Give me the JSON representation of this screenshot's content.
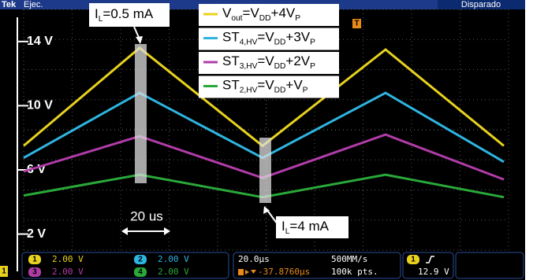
{
  "chart_data": {
    "type": "line",
    "x": [
      0,
      49,
      101,
      153,
      203
    ],
    "xlim": [
      0,
      205
    ],
    "ylim": [
      1,
      16
    ],
    "yticks": [
      {
        "value": 2,
        "label": "2 V"
      },
      {
        "value": 6,
        "label": "6 V"
      },
      {
        "value": 10,
        "label": "10 V"
      },
      {
        "value": 14,
        "label": "14 V"
      }
    ],
    "grid": true,
    "series": [
      {
        "name": [
          "V",
          "out",
          "=V",
          "DD",
          "+4V",
          "P"
        ],
        "color": "#e8d21f",
        "values": [
          7.5,
          13.6,
          7.5,
          13.5,
          7.5
        ]
      },
      {
        "name": [
          "ST",
          "4,HV",
          "=V",
          "DD",
          "+3V",
          "P"
        ],
        "color": "#2fb4e0",
        "values": [
          6.75,
          10.8,
          6.75,
          10.8,
          6.5
        ]
      },
      {
        "name": [
          "ST",
          "3,HV",
          "=V",
          "DD",
          "+2V",
          "P"
        ],
        "color": "#b03ca8",
        "values": [
          5.9,
          8.1,
          5.5,
          8.2,
          5.4
        ]
      },
      {
        "name": [
          "ST",
          "2,HV",
          "=V",
          "DD",
          "+V",
          "P"
        ],
        "color": "#2aa83a",
        "values": [
          4.4,
          5.7,
          4.3,
          5.7,
          4.3
        ]
      }
    ],
    "annotations": [
      [
        "I",
        "L",
        "=0.5 mA"
      ],
      [
        "I",
        "L",
        "=4 mA"
      ],
      "20 us"
    ]
  },
  "scope": {
    "brand": "Tek",
    "mode": "Ejec.",
    "status": "Disparado",
    "trigger_marker": "T",
    "ground_marker": "1",
    "channels": [
      {
        "id": "1",
        "scale": "2.00 V"
      },
      {
        "id": "2",
        "scale": "2.00 V"
      },
      {
        "id": "3",
        "scale": "2.00 V"
      },
      {
        "id": "4",
        "scale": "2.00 V"
      }
    ],
    "timebase": "20.0µs",
    "sample_rate": "500MM/s",
    "position": "-37.8760µs",
    "record": "100k pts.",
    "trigger_channel": "1",
    "trigger_level": "12.9 V"
  }
}
